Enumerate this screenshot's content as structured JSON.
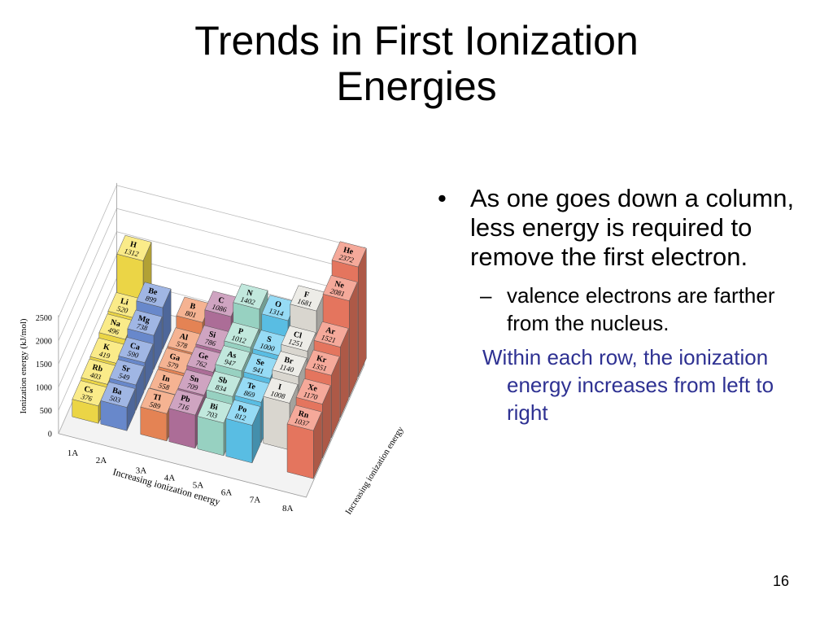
{
  "title": {
    "line1": "Trends in First Ionization",
    "line2": "Energies"
  },
  "bullets": {
    "main": "As one goes down a column, less energy is required to remove the first electron.",
    "sub": "valence electrons are farther from the nucleus.",
    "note": "Within each row, the ionization energy increases from left to right"
  },
  "page_number": "16",
  "figure": {
    "y_axis_label": "Ionization energy (kJ/mol)",
    "y_ticks": [
      "2500",
      "2000",
      "1500",
      "1000",
      "500",
      "0"
    ],
    "x_axis_label": "Increasing ionization energy",
    "depth_axis_label": "Increasing ionization energy",
    "group_labels": [
      "1A",
      "2A",
      "3A",
      "4A",
      "5A",
      "6A",
      "7A",
      "8A"
    ],
    "colors": {
      "1A": "#f7e04a",
      "2A": "#6d8fd6",
      "3A": "#f08a58",
      "4A": "#b5739f",
      "5A": "#9fdccb",
      "6A": "#5ec7ef",
      "7A": "#e4e1da",
      "8A": "#f07b63"
    },
    "elements": [
      {
        "symbol": "H",
        "value": "1312",
        "group": "1A"
      },
      {
        "symbol": "Li",
        "value": "520",
        "group": "1A"
      },
      {
        "symbol": "Na",
        "value": "496",
        "group": "1A"
      },
      {
        "symbol": "K",
        "value": "419",
        "group": "1A"
      },
      {
        "symbol": "Rb",
        "value": "403",
        "group": "1A"
      },
      {
        "symbol": "Cs",
        "value": "376",
        "group": "1A"
      },
      {
        "symbol": "Be",
        "value": "899",
        "group": "2A"
      },
      {
        "symbol": "Mg",
        "value": "738",
        "group": "2A"
      },
      {
        "symbol": "Ca",
        "value": "590",
        "group": "2A"
      },
      {
        "symbol": "Sr",
        "value": "549",
        "group": "2A"
      },
      {
        "symbol": "Ba",
        "value": "503",
        "group": "2A"
      },
      {
        "symbol": "B",
        "value": "801",
        "group": "3A"
      },
      {
        "symbol": "Al",
        "value": "578",
        "group": "3A"
      },
      {
        "symbol": "Ga",
        "value": "579",
        "group": "3A"
      },
      {
        "symbol": "In",
        "value": "558",
        "group": "3A"
      },
      {
        "symbol": "Tl",
        "value": "589",
        "group": "3A"
      },
      {
        "symbol": "C",
        "value": "1086",
        "group": "4A"
      },
      {
        "symbol": "Si",
        "value": "786",
        "group": "4A"
      },
      {
        "symbol": "Ge",
        "value": "762",
        "group": "4A"
      },
      {
        "symbol": "Sn",
        "value": "709",
        "group": "4A"
      },
      {
        "symbol": "Pb",
        "value": "716",
        "group": "4A"
      },
      {
        "symbol": "N",
        "value": "1402",
        "group": "5A"
      },
      {
        "symbol": "P",
        "value": "1012",
        "group": "5A"
      },
      {
        "symbol": "As",
        "value": "947",
        "group": "5A"
      },
      {
        "symbol": "Sb",
        "value": "834",
        "group": "5A"
      },
      {
        "symbol": "Bi",
        "value": "703",
        "group": "5A"
      },
      {
        "symbol": "O",
        "value": "1314",
        "group": "6A"
      },
      {
        "symbol": "S",
        "value": "1000",
        "group": "6A"
      },
      {
        "symbol": "Se",
        "value": "941",
        "group": "6A"
      },
      {
        "symbol": "Te",
        "value": "869",
        "group": "6A"
      },
      {
        "symbol": "Po",
        "value": "812",
        "group": "6A"
      },
      {
        "symbol": "F",
        "value": "1681",
        "group": "7A"
      },
      {
        "symbol": "Cl",
        "value": "1251",
        "group": "7A"
      },
      {
        "symbol": "Br",
        "value": "1140",
        "group": "7A"
      },
      {
        "symbol": "I",
        "value": "1008",
        "group": "7A"
      },
      {
        "symbol": "He",
        "value": "2372",
        "group": "8A"
      },
      {
        "symbol": "Ne",
        "value": "2081",
        "group": "8A"
      },
      {
        "symbol": "Ar",
        "value": "1521",
        "group": "8A"
      },
      {
        "symbol": "Kr",
        "value": "1351",
        "group": "8A"
      },
      {
        "symbol": "Xe",
        "value": "1170",
        "group": "8A"
      },
      {
        "symbol": "Rn",
        "value": "1037",
        "group": "8A"
      }
    ]
  }
}
